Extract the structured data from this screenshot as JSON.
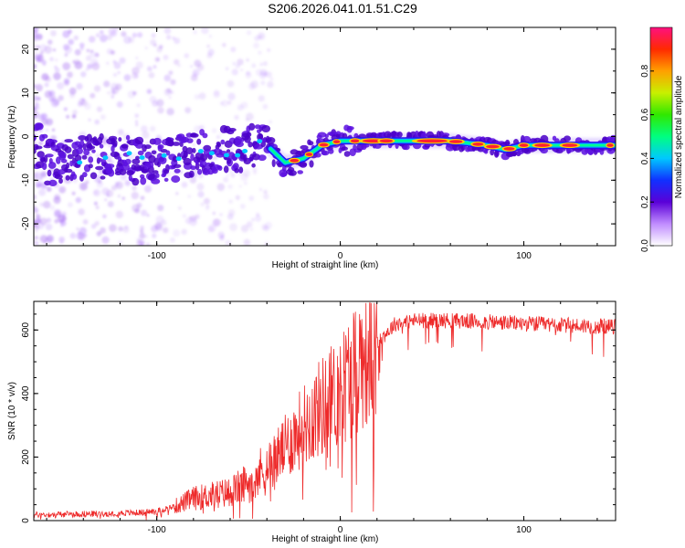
{
  "title": "S206.2026.041.01.51.C29",
  "colorbar": {
    "label": "Normalized spectral amplitude",
    "ticks": [
      "0.0",
      "0.2",
      "0.4",
      "0.6",
      "0.8"
    ]
  },
  "chart_data": [
    {
      "type": "heatmap",
      "title": "S206.2026.041.01.51.C29",
      "xlabel": "Height of straight line (km)",
      "ylabel": "Frequency (Hz)",
      "xlim": [
        -167,
        150
      ],
      "ylim": [
        -25,
        25
      ],
      "xticks": [
        "-100",
        "0",
        "100"
      ],
      "yticks": [
        "-20",
        "-10",
        "0",
        "10",
        "20"
      ],
      "colorbar_range": [
        0,
        1
      ],
      "ridge": {
        "description_km": [
          -160,
          -140,
          -120,
          -100,
          -80,
          -60,
          -40,
          -30,
          -20,
          -10,
          0,
          10,
          20,
          40,
          60,
          80,
          90,
          100,
          120,
          150
        ],
        "frequency_hz": [
          -6,
          -5,
          -5,
          -6,
          -4,
          -3,
          -2,
          -6,
          -5,
          -2,
          -1,
          -1,
          -1,
          -1,
          -1,
          -2,
          -3,
          -2,
          -2,
          -2
        ]
      },
      "legend": "colorbar right"
    },
    {
      "type": "line",
      "xlabel": "Height of straight line (km)",
      "ylabel": "SNR (10 * v/v)",
      "xlim": [
        -167,
        150
      ],
      "ylim": [
        0,
        690
      ],
      "xticks": [
        "-100",
        "0",
        "100"
      ],
      "yticks": [
        "0",
        "200",
        "400",
        "600"
      ],
      "series": [
        {
          "name": "SNR",
          "color": "#ee2a2a",
          "x": [
            -167,
            -150,
            -130,
            -110,
            -100,
            -90,
            -80,
            -70,
            -60,
            -50,
            -40,
            -30,
            -20,
            -10,
            0,
            10,
            20,
            30,
            40,
            60,
            80,
            100,
            120,
            150
          ],
          "y": [
            18,
            20,
            22,
            25,
            30,
            45,
            70,
            80,
            90,
            120,
            170,
            230,
            300,
            360,
            410,
            500,
            560,
            620,
            630,
            630,
            625,
            620,
            615,
            610
          ]
        }
      ]
    }
  ]
}
